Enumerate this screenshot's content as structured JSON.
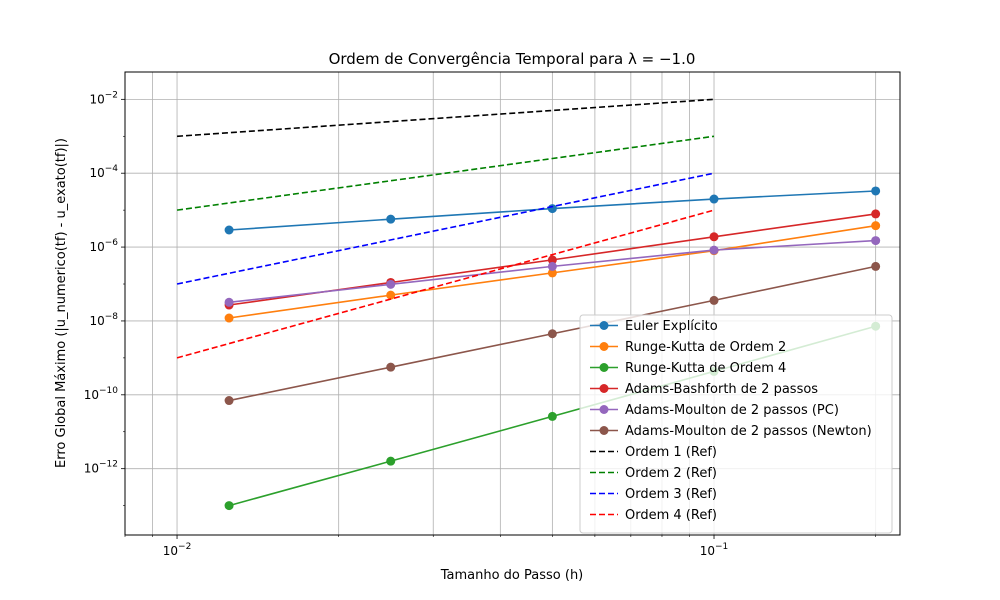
{
  "chart_data": {
    "type": "line",
    "title": "Ordem de Convergência Temporal para λ = −1.0",
    "xlabel": "Tamanho do Passo (h)",
    "ylabel": "Erro Global Máximo (|u_numerico(tf) - u_exato(tf)|)",
    "xscale": "log",
    "yscale": "log",
    "xlim": [
      0.008,
      0.222
    ],
    "ylim": [
      1.6e-14,
      0.055
    ],
    "grid": true,
    "legend_position": "lower-right",
    "x_ticks": [
      {
        "value": 0.01,
        "base": "10",
        "exp": "−2"
      },
      {
        "value": 0.1,
        "base": "10",
        "exp": "−1"
      }
    ],
    "y_ticks": [
      {
        "value": 1e-12,
        "base": "10",
        "exp": "−12"
      },
      {
        "value": 1e-10,
        "base": "10",
        "exp": "−10"
      },
      {
        "value": 1e-08,
        "base": "10",
        "exp": "−8"
      },
      {
        "value": 1e-06,
        "base": "10",
        "exp": "−6"
      },
      {
        "value": 0.0001,
        "base": "10",
        "exp": "−4"
      },
      {
        "value": 0.01,
        "base": "10",
        "exp": "−2"
      }
    ],
    "series": [
      {
        "name": "Euler Explícito",
        "color": "#1f77b4",
        "style": "solid",
        "marker": true,
        "x": [
          0.0125,
          0.025,
          0.05,
          0.1,
          0.2
        ],
        "y": [
          2.9e-06,
          5.7e-06,
          1.1e-05,
          2e-05,
          3.3e-05
        ]
      },
      {
        "name": "Runge-Kutta de Ordem 2",
        "color": "#ff7f0e",
        "style": "solid",
        "marker": true,
        "x": [
          0.0125,
          0.025,
          0.05,
          0.1,
          0.2
        ],
        "y": [
          1.2e-08,
          5e-08,
          2e-07,
          8e-07,
          3.8e-06
        ]
      },
      {
        "name": "Runge-Kutta de Ordem 4",
        "color": "#2ca02c",
        "style": "solid",
        "marker": true,
        "x": [
          0.0125,
          0.025,
          0.05,
          0.1,
          0.2
        ],
        "y": [
          1e-13,
          1.6e-12,
          2.6e-11,
          4.3e-10,
          7.2e-09
        ]
      },
      {
        "name": "Adams-Bashforth de 2 passos",
        "color": "#d62728",
        "style": "solid",
        "marker": true,
        "x": [
          0.0125,
          0.025,
          0.05,
          0.1,
          0.2
        ],
        "y": [
          2.7e-08,
          1.1e-07,
          4.5e-07,
          1.9e-06,
          7.9e-06
        ]
      },
      {
        "name": "Adams-Moulton de 2 passos (PC)",
        "color": "#9467bd",
        "style": "solid",
        "marker": true,
        "x": [
          0.0125,
          0.025,
          0.05,
          0.1,
          0.2
        ],
        "y": [
          3.2e-08,
          9.8e-08,
          3e-07,
          8.3e-07,
          1.5e-06
        ]
      },
      {
        "name": "Adams-Moulton de 2 passos (Newton)",
        "color": "#8c564b",
        "style": "solid",
        "marker": true,
        "x": [
          0.0125,
          0.025,
          0.05,
          0.1,
          0.2
        ],
        "y": [
          7e-11,
          5.6e-10,
          4.5e-09,
          3.6e-08,
          3e-07
        ]
      },
      {
        "name": "Ordem 1 (Ref)",
        "color": "#000000",
        "style": "dashed",
        "marker": false,
        "x": [
          0.01,
          0.1
        ],
        "y": [
          0.001,
          0.01
        ]
      },
      {
        "name": "Ordem 2 (Ref)",
        "color": "#008000",
        "style": "dashed",
        "marker": false,
        "x": [
          0.01,
          0.1
        ],
        "y": [
          1e-05,
          0.001
        ]
      },
      {
        "name": "Ordem 3 (Ref)",
        "color": "#0000ff",
        "style": "dashed",
        "marker": false,
        "x": [
          0.01,
          0.1
        ],
        "y": [
          1e-07,
          0.0001
        ]
      },
      {
        "name": "Ordem 4 (Ref)",
        "color": "#ff0000",
        "style": "dashed",
        "marker": false,
        "x": [
          0.01,
          0.1
        ],
        "y": [
          1e-09,
          1e-05
        ]
      }
    ]
  }
}
